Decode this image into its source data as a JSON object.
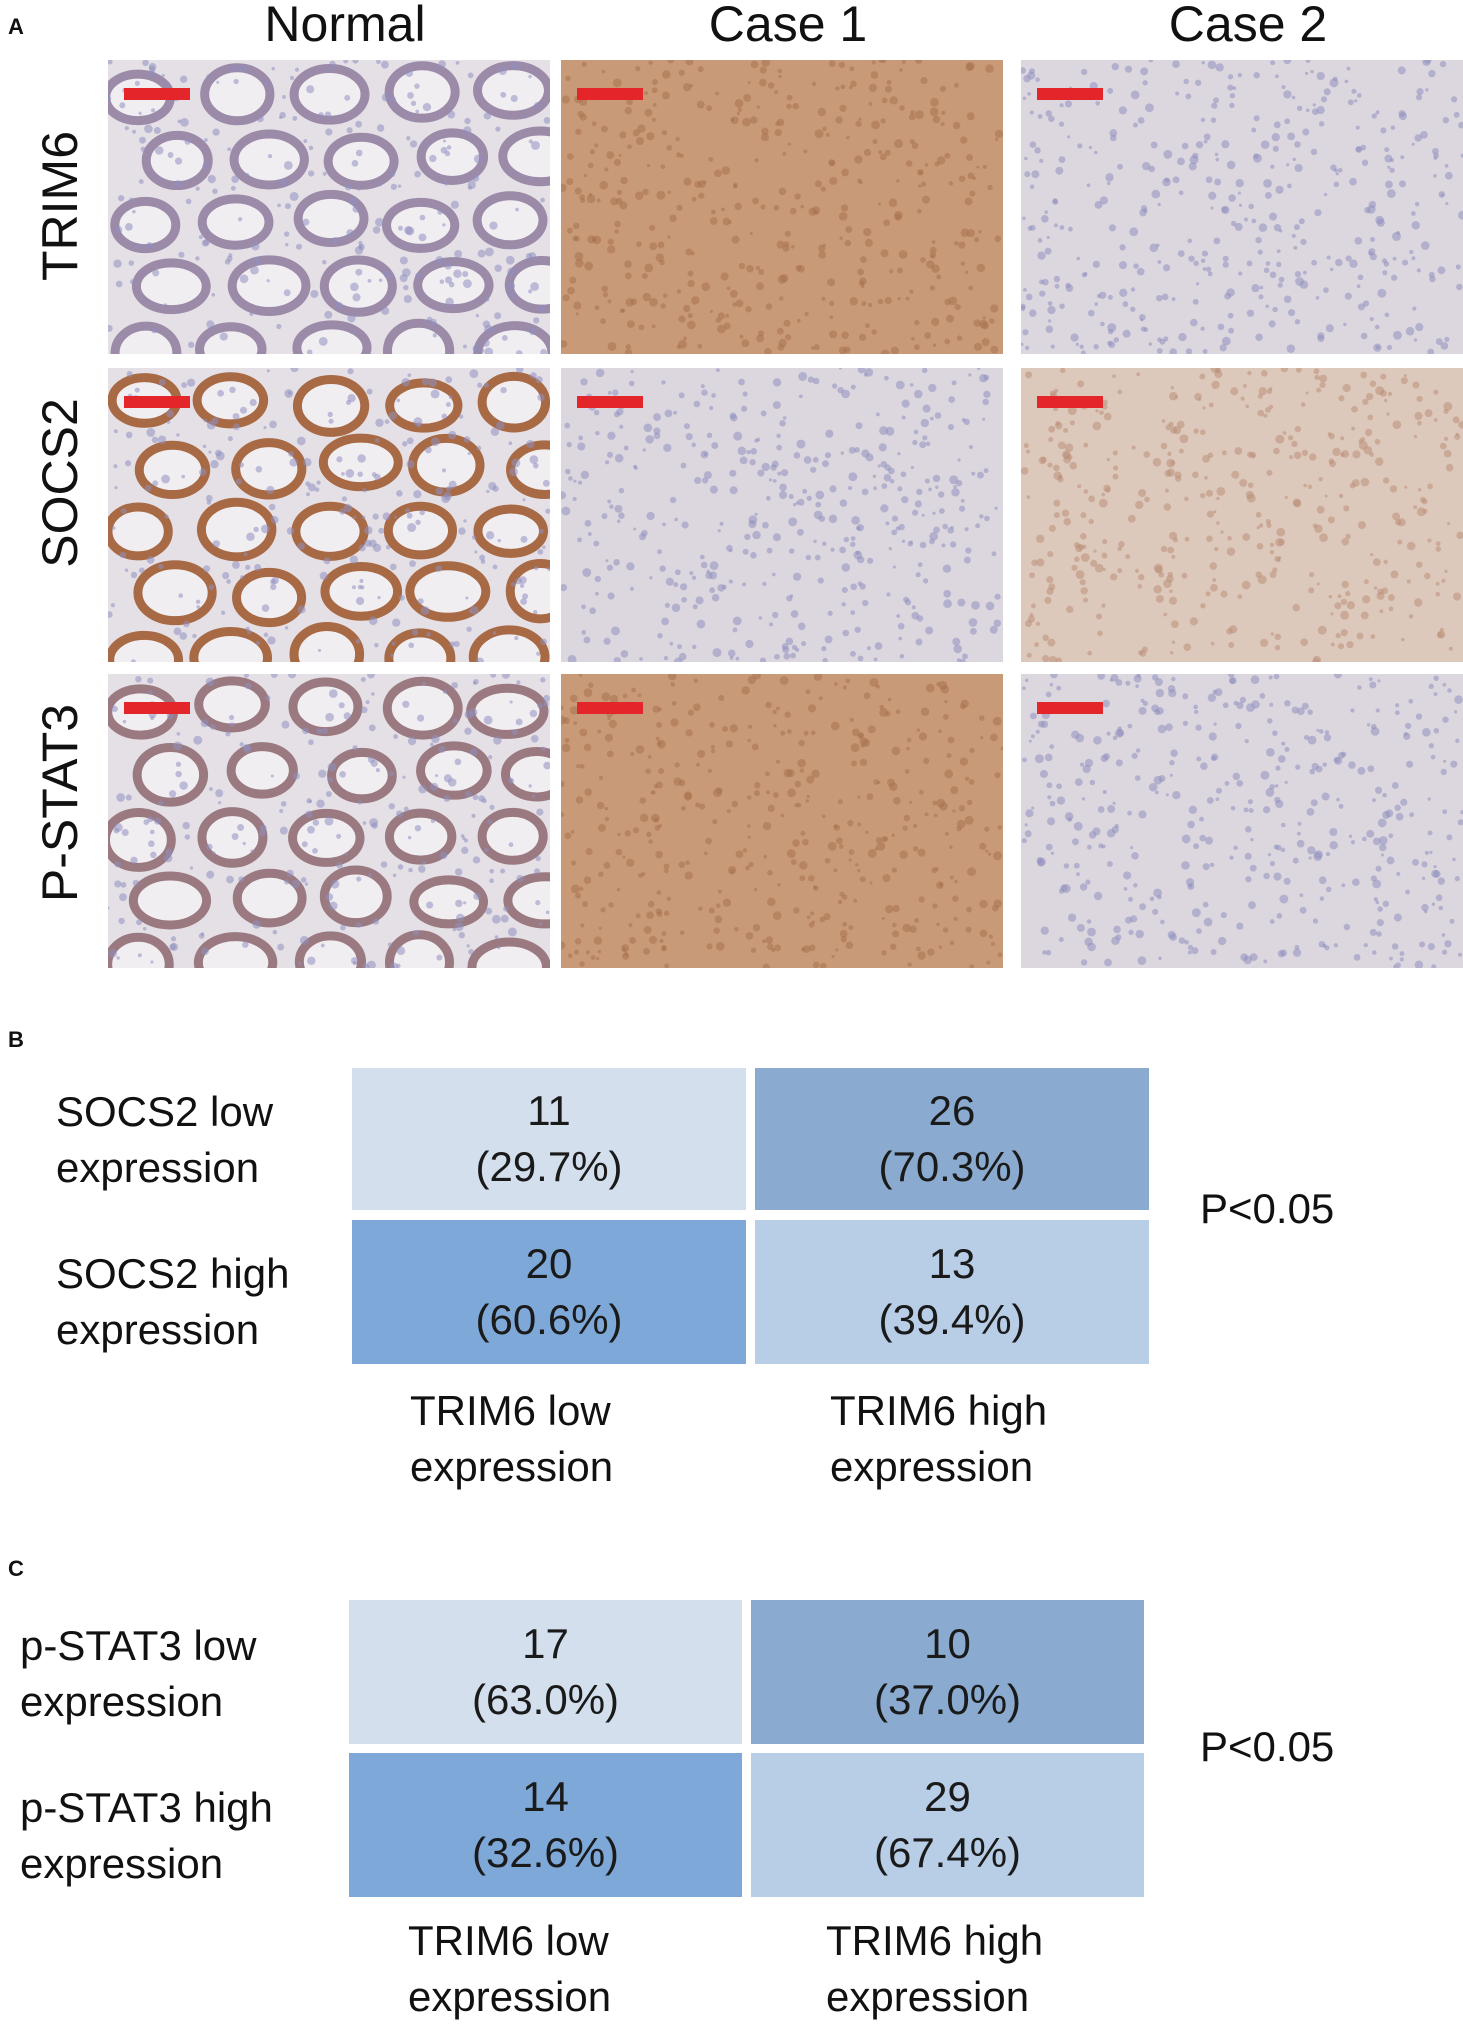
{
  "panel_a": {
    "letter": "A",
    "columns": [
      "Normal",
      "Case 1",
      "Case 2"
    ],
    "rows": [
      "TRIM6",
      "SOCS2",
      "P-STAT3"
    ]
  },
  "panel_b": {
    "letter": "B",
    "row_labels": [
      [
        "SOCS2 low",
        "expression"
      ],
      [
        "SOCS2 high",
        "expression"
      ]
    ],
    "col_labels": [
      [
        "TRIM6 low",
        "expression"
      ],
      [
        "TRIM6 high",
        "expression"
      ]
    ],
    "cells": [
      [
        {
          "count": "11",
          "pct": "(29.7%)"
        },
        {
          "count": "26",
          "pct": "(70.3%)"
        }
      ],
      [
        {
          "count": "20",
          "pct": "(60.6%)"
        },
        {
          "count": "13",
          "pct": "(39.4%)"
        }
      ]
    ],
    "p_value": "P<0.05"
  },
  "panel_c": {
    "letter": "C",
    "row_labels": [
      [
        "p-STAT3 low",
        "expression"
      ],
      [
        "p-STAT3 high",
        "expression"
      ]
    ],
    "col_labels": [
      [
        "TRIM6 low",
        "expression"
      ],
      [
        "TRIM6 high",
        "expression"
      ]
    ],
    "cells": [
      [
        {
          "count": "17",
          "pct": "(63.0%)"
        },
        {
          "count": "10",
          "pct": "(37.0%)"
        }
      ],
      [
        {
          "count": "14",
          "pct": "(32.6%)"
        },
        {
          "count": "29",
          "pct": "(67.4%)"
        }
      ]
    ],
    "p_value": "P<0.05"
  },
  "colors": {
    "cell_light": "#d3dfed",
    "cell_mid_dark": "#8aaacf",
    "cell_dark": "#7ea8d8",
    "cell_mid_light": "#b8cde6",
    "scale_bar": "#e4262b",
    "tissue_normal_bg": "#e4e0e6",
    "tissue_brown": "#c6926d",
    "tissue_pale": "#dcd7de"
  }
}
